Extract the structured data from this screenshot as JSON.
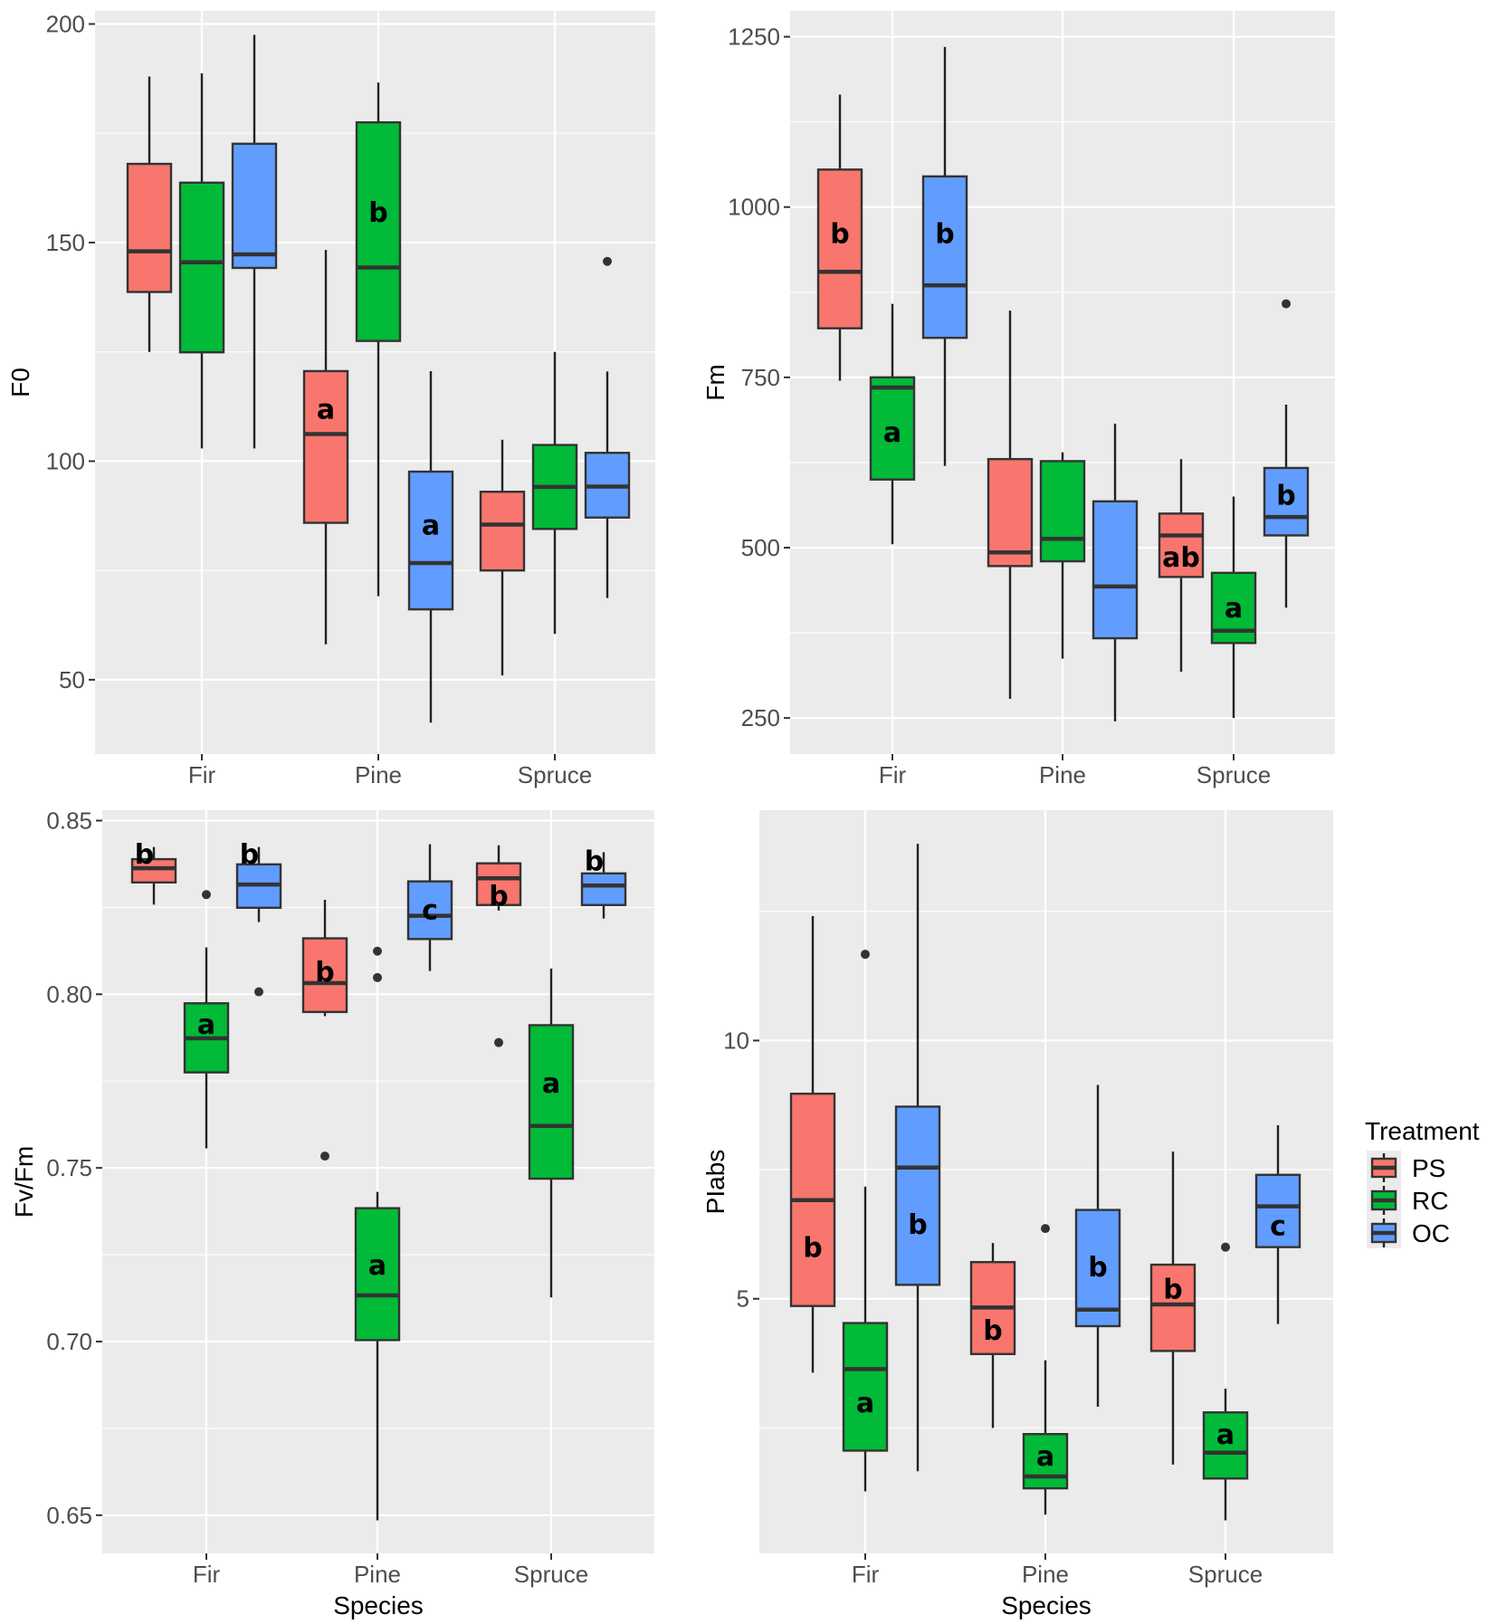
{
  "chart_data": [
    {
      "type": "boxplot",
      "id": "f0",
      "title": "",
      "xlabel": "",
      "ylabel": "F0",
      "categories": [
        "Fir",
        "Pine",
        "Spruce"
      ],
      "ylim": [
        33,
        203
      ],
      "yticks": [
        50,
        100,
        150,
        200
      ],
      "ytick_labels": [
        "50",
        "100",
        "150",
        "200"
      ],
      "yminor": [
        75,
        125,
        175
      ],
      "grid": true,
      "series": [
        {
          "name": "PS",
          "boxes": [
            {
              "whisker_low": 125,
              "q1": 138.7,
              "median": 148,
              "q3": 168,
              "whisker_high": 188,
              "outliers": [],
              "letter": ""
            },
            {
              "whisker_low": 58.1,
              "q1": 85.9,
              "median": 106.2,
              "q3": 120.6,
              "whisker_high": 148.3,
              "outliers": [],
              "letter": "a",
              "letter_y": 112
            },
            {
              "whisker_low": 51,
              "q1": 75,
              "median": 85.5,
              "q3": 93,
              "whisker_high": 104.9,
              "outliers": [],
              "letter": ""
            }
          ]
        },
        {
          "name": "RC",
          "boxes": [
            {
              "whisker_low": 102.9,
              "q1": 124.9,
              "median": 145.5,
              "q3": 163.7,
              "whisker_high": 188.7,
              "outliers": [],
              "letter": ""
            },
            {
              "whisker_low": 69.1,
              "q1": 127.5,
              "median": 144.3,
              "q3": 177.5,
              "whisker_high": 186.6,
              "outliers": [],
              "letter": "b",
              "letter_y": 157
            },
            {
              "whisker_low": 60.5,
              "q1": 84.5,
              "median": 94.1,
              "q3": 103.7,
              "whisker_high": 125,
              "outliers": [],
              "letter": ""
            }
          ]
        },
        {
          "name": "OC",
          "boxes": [
            {
              "whisker_low": 102.9,
              "q1": 144.2,
              "median": 147.3,
              "q3": 172.6,
              "whisker_high": 197.5,
              "outliers": [],
              "letter": ""
            },
            {
              "whisker_low": 40.2,
              "q1": 66.1,
              "median": 76.7,
              "q3": 97.6,
              "whisker_high": 120.6,
              "outliers": [],
              "letter": "a",
              "letter_y": 85.5
            },
            {
              "whisker_low": 68.7,
              "q1": 87.1,
              "median": 94.2,
              "q3": 101.9,
              "whisker_high": 120.5,
              "outliers": [
                145.7
              ],
              "letter": ""
            }
          ]
        }
      ]
    },
    {
      "type": "boxplot",
      "id": "fm",
      "title": "",
      "xlabel": "",
      "ylabel": "Fm",
      "categories": [
        "Fir",
        "Pine",
        "Spruce"
      ],
      "ylim": [
        197,
        1288
      ],
      "yticks": [
        250,
        500,
        750,
        1000,
        1250
      ],
      "ytick_labels": [
        "250",
        "500",
        "750",
        "1000",
        "1250"
      ],
      "yminor": [
        375,
        625,
        875,
        1125
      ],
      "grid": true,
      "series": [
        {
          "name": "PS",
          "boxes": [
            {
              "whisker_low": 745,
              "q1": 822,
              "median": 905,
              "q3": 1055,
              "whisker_high": 1165,
              "outliers": [],
              "letter": "b",
              "letter_y": 962
            },
            {
              "whisker_low": 278,
              "q1": 473,
              "median": 493,
              "q3": 630,
              "whisker_high": 848,
              "outliers": [],
              "letter": ""
            },
            {
              "whisker_low": 318,
              "q1": 457,
              "median": 518,
              "q3": 550,
              "whisker_high": 630,
              "outliers": [],
              "letter": "ab",
              "letter_y": 487
            }
          ]
        },
        {
          "name": "RC",
          "boxes": [
            {
              "whisker_low": 505,
              "q1": 600,
              "median": 735,
              "q3": 750,
              "whisker_high": 858,
              "outliers": [],
              "letter": "a",
              "letter_y": 670
            },
            {
              "whisker_low": 337,
              "q1": 480,
              "median": 513,
              "q3": 627,
              "whisker_high": 640,
              "outliers": [],
              "letter": ""
            },
            {
              "whisker_low": 250,
              "q1": 360,
              "median": 378,
              "q3": 463,
              "whisker_high": 575,
              "outliers": [],
              "letter": "a",
              "letter_y": 412
            }
          ]
        },
        {
          "name": "OC",
          "boxes": [
            {
              "whisker_low": 620,
              "q1": 808,
              "median": 885,
              "q3": 1045,
              "whisker_high": 1235,
              "outliers": [],
              "letter": "b",
              "letter_y": 962
            },
            {
              "whisker_low": 245,
              "q1": 367,
              "median": 443,
              "q3": 568,
              "whisker_high": 682,
              "outliers": [],
              "letter": ""
            },
            {
              "whisker_low": 412,
              "q1": 518,
              "median": 545,
              "q3": 617,
              "whisker_high": 710,
              "outliers": [
                858
              ],
              "letter": "b",
              "letter_y": 578
            }
          ]
        }
      ]
    },
    {
      "type": "boxplot",
      "id": "fvfm",
      "title": "",
      "xlabel": "Species",
      "ylabel": "Fv/Fm",
      "categories": [
        "Fir",
        "Pine",
        "Spruce"
      ],
      "ylim": [
        0.639,
        0.853
      ],
      "yticks": [
        0.65,
        0.7,
        0.75,
        0.8,
        0.85
      ],
      "ytick_labels": [
        "0.65",
        "0.70",
        "0.75",
        "0.80",
        "0.85"
      ],
      "yminor": [
        0.675,
        0.725,
        0.775,
        0.825
      ],
      "grid": true,
      "series": [
        {
          "name": "PS",
          "boxes": [
            {
              "whisker_low": 0.8258,
              "q1": 0.8322,
              "median": 0.8363,
              "q3": 0.8389,
              "whisker_high": 0.8424,
              "outliers": [],
              "letter": "b",
              "letter_y": 0.8405,
              "letter_dx": -0.22
            },
            {
              "whisker_low": 0.7937,
              "q1": 0.7949,
              "median": 0.8032,
              "q3": 0.8161,
              "whisker_high": 0.8272,
              "outliers": [
                0.7534
              ],
              "letter": "b",
              "letter_y": 0.8066
            },
            {
              "whisker_low": 0.8241,
              "q1": 0.8257,
              "median": 0.8334,
              "q3": 0.8377,
              "whisker_high": 0.8429,
              "outliers": [
                0.7861
              ],
              "letter": "b",
              "letter_y": 0.8285
            }
          ]
        },
        {
          "name": "RC",
          "boxes": [
            {
              "whisker_low": 0.7556,
              "q1": 0.7775,
              "median": 0.7873,
              "q3": 0.7974,
              "whisker_high": 0.8135,
              "outliers": [
                0.8287
              ],
              "letter": "a",
              "letter_y": 0.7915
            },
            {
              "whisker_low": 0.6485,
              "q1": 0.7004,
              "median": 0.7133,
              "q3": 0.7384,
              "whisker_high": 0.7431,
              "outliers": [
                0.8124,
                0.8048
              ],
              "letter": "a",
              "letter_y": 0.7222
            },
            {
              "whisker_low": 0.7127,
              "q1": 0.7469,
              "median": 0.7621,
              "q3": 0.7911,
              "whisker_high": 0.8074,
              "outliers": [],
              "letter": "a",
              "letter_y": 0.7745
            }
          ]
        },
        {
          "name": "OC",
          "boxes": [
            {
              "whisker_low": 0.8208,
              "q1": 0.8249,
              "median": 0.8316,
              "q3": 0.8374,
              "whisker_high": 0.8424,
              "outliers": [
                0.8007
              ],
              "letter": "b",
              "letter_y": 0.8405,
              "letter_dx": -0.22
            },
            {
              "whisker_low": 0.8067,
              "q1": 0.8159,
              "median": 0.8226,
              "q3": 0.8325,
              "whisker_high": 0.8432,
              "outliers": [],
              "letter": "c",
              "letter_y": 0.8245
            },
            {
              "whisker_low": 0.8218,
              "q1": 0.8257,
              "median": 0.8313,
              "q3": 0.8348,
              "whisker_high": 0.8409,
              "outliers": [],
              "letter": "b",
              "letter_y": 0.8385,
              "letter_dx": -0.22
            }
          ]
        }
      ]
    },
    {
      "type": "boxplot",
      "id": "piabs",
      "title": "",
      "xlabel": "Species",
      "ylabel": "PIabs",
      "categories": [
        "Fir",
        "Pine",
        "Spruce"
      ],
      "ylim": [
        0.07,
        14.46
      ],
      "yticks": [
        5,
        10
      ],
      "ytick_labels": [
        "5",
        "10"
      ],
      "yminor": [
        2.5,
        7.5,
        12.5
      ],
      "grid": true,
      "series": [
        {
          "name": "PS",
          "boxes": [
            {
              "whisker_low": 3.57,
              "q1": 4.86,
              "median": 6.91,
              "q3": 8.97,
              "whisker_high": 12.41,
              "outliers": [],
              "letter": "b",
              "letter_y": 6.0
            },
            {
              "whisker_low": 2.5,
              "q1": 3.93,
              "median": 4.83,
              "q3": 5.71,
              "whisker_high": 6.08,
              "outliers": [],
              "letter": "b",
              "letter_y": 4.4
            },
            {
              "whisker_low": 1.79,
              "q1": 3.99,
              "median": 4.89,
              "q3": 5.66,
              "whisker_high": 7.85,
              "outliers": [],
              "letter": "b",
              "letter_y": 5.2
            }
          ]
        },
        {
          "name": "RC",
          "boxes": [
            {
              "whisker_low": 1.27,
              "q1": 2.06,
              "median": 3.64,
              "q3": 4.53,
              "whisker_high": 7.17,
              "outliers": [
                11.67
              ],
              "letter": "a",
              "letter_y": 3.0
            },
            {
              "whisker_low": 0.82,
              "q1": 1.33,
              "median": 1.56,
              "q3": 2.38,
              "whisker_high": 3.81,
              "outliers": [
                6.36
              ],
              "letter": "a",
              "letter_y": 1.96
            },
            {
              "whisker_low": 0.71,
              "q1": 1.52,
              "median": 2.02,
              "q3": 2.8,
              "whisker_high": 3.26,
              "outliers": [
                6.0
              ],
              "letter": "a",
              "letter_y": 2.38
            }
          ]
        },
        {
          "name": "OC",
          "boxes": [
            {
              "whisker_low": 1.66,
              "q1": 5.27,
              "median": 7.54,
              "q3": 8.72,
              "whisker_high": 13.81,
              "outliers": [],
              "letter": "b",
              "letter_y": 6.45
            },
            {
              "whisker_low": 2.91,
              "q1": 4.47,
              "median": 4.79,
              "q3": 6.72,
              "whisker_high": 9.14,
              "outliers": [],
              "letter": "b",
              "letter_y": 5.63
            },
            {
              "whisker_low": 4.51,
              "q1": 6.0,
              "median": 6.79,
              "q3": 7.4,
              "whisker_high": 8.36,
              "outliers": [],
              "letter": "c",
              "letter_y": 6.42
            }
          ]
        }
      ]
    }
  ],
  "legend": {
    "title": "Treatment",
    "position": "right",
    "items": [
      {
        "label": "PS",
        "color": "#F8766D"
      },
      {
        "label": "RC",
        "color": "#00BA38"
      },
      {
        "label": "OC",
        "color": "#619CFF"
      }
    ]
  },
  "colors": {
    "panel_background": "#EBEBEB",
    "grid": "#FFFFFF",
    "box_outline": "#333333",
    "PS": "#F8766D",
    "RC": "#00BA38",
    "OC": "#619CFF"
  }
}
